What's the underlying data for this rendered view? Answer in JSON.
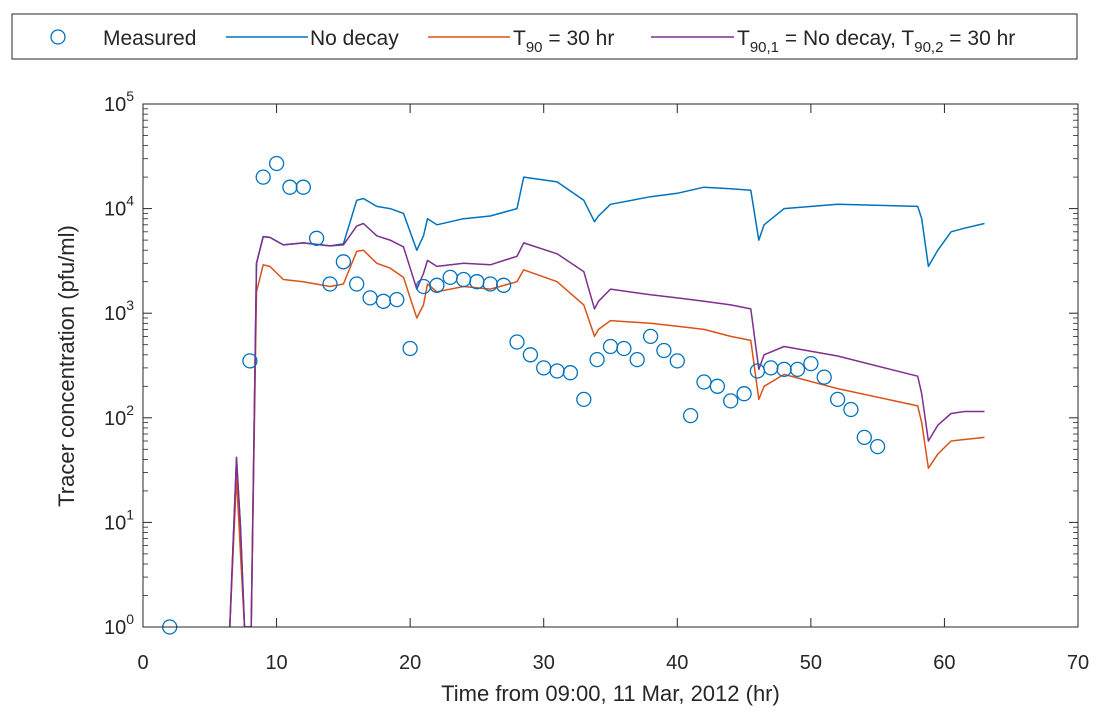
{
  "chart_data": {
    "type": "line",
    "xlabel": "Time from 09:00, 11 Mar, 2012 (hr)",
    "ylabel": "Tracer concentration (pfu/ml)",
    "xlim": [
      0,
      70
    ],
    "ylim": [
      1,
      100000
    ],
    "yscale": "log",
    "grid": false,
    "legend_position": "top",
    "x_ticks": [
      0,
      10,
      20,
      30,
      40,
      50,
      60,
      70
    ],
    "y_ticks": [
      {
        "value": 1,
        "base": "10",
        "exp": "0"
      },
      {
        "value": 10,
        "base": "10",
        "exp": "1"
      },
      {
        "value": 100,
        "base": "10",
        "exp": "2"
      },
      {
        "value": 1000,
        "base": "10",
        "exp": "3"
      },
      {
        "value": 10000,
        "base": "10",
        "exp": "4"
      },
      {
        "value": 100000,
        "base": "10",
        "exp": "5"
      }
    ],
    "legend": [
      {
        "key": "measured",
        "parts": [
          {
            "t": "Measured"
          }
        ]
      },
      {
        "key": "nodecay",
        "parts": [
          {
            "t": "No decay"
          }
        ]
      },
      {
        "key": "t90",
        "parts": [
          {
            "t": "T"
          },
          {
            "t": "90",
            "sub": true
          },
          {
            "t": " = 30 hr"
          }
        ]
      },
      {
        "key": "t90mix",
        "parts": [
          {
            "t": "T"
          },
          {
            "t": "90,1",
            "sub": true
          },
          {
            "t": " = No decay, T"
          },
          {
            "t": "90,2",
            "sub": true
          },
          {
            "t": " = 30 hr"
          }
        ]
      }
    ],
    "series": [
      {
        "name": "Measured",
        "kind": "scatter",
        "color": "#0072BD",
        "x": [
          2,
          8,
          9,
          10,
          11,
          12,
          13,
          14,
          15,
          16,
          17,
          18,
          19,
          20,
          21,
          22,
          23,
          24,
          25,
          26,
          27,
          28,
          29,
          30,
          31,
          32,
          33,
          34,
          35,
          36,
          37,
          38,
          39,
          40,
          41,
          42,
          43,
          44,
          45,
          46,
          47,
          48,
          49,
          50,
          51,
          52,
          53,
          54,
          55
        ],
        "y": [
          1,
          350,
          20000,
          27000,
          16000,
          16000,
          5200,
          1900,
          3100,
          1900,
          1400,
          1300,
          1350,
          460,
          1800,
          1850,
          2200,
          2100,
          2000,
          1900,
          1850,
          530,
          400,
          300,
          280,
          270,
          150,
          360,
          480,
          460,
          360,
          600,
          440,
          350,
          105,
          220,
          200,
          145,
          170,
          280,
          300,
          290,
          290,
          330,
          245,
          150,
          120,
          65,
          53
        ]
      },
      {
        "name": "No decay",
        "kind": "line",
        "color": "#0072BD",
        "x": [
          6.5,
          7.0,
          7.3,
          7.6,
          8.1,
          8.5,
          9.0,
          9.5,
          10.5,
          12,
          14,
          15,
          16,
          16.5,
          17.5,
          18.5,
          19.5,
          20.5,
          21,
          21.3,
          22,
          24,
          26,
          28,
          28.5,
          31,
          33,
          33.8,
          34.1,
          35,
          38,
          40,
          42,
          44,
          45.5,
          46.1,
          46.5,
          48,
          52,
          58,
          58.3,
          58.8,
          59.5,
          60.5,
          61.5,
          63
        ],
        "y": [
          1,
          40,
          9,
          1,
          1,
          3000,
          5400,
          5300,
          4500,
          4700,
          4400,
          4600,
          12000,
          12500,
          10500,
          10000,
          9000,
          4000,
          5500,
          8000,
          7000,
          8000,
          8500,
          10000,
          20000,
          18000,
          12000,
          7500,
          8500,
          11000,
          13000,
          14000,
          16000,
          15500,
          15000,
          5000,
          7000,
          10000,
          11000,
          10500,
          8000,
          2800,
          4000,
          6000,
          6500,
          7200
        ]
      },
      {
        "name": "T90 = 30 hr",
        "kind": "line",
        "color": "#D95319",
        "x": [
          6.5,
          7.0,
          7.3,
          7.6,
          8.1,
          8.5,
          9.0,
          9.5,
          10.5,
          12,
          14,
          15,
          16,
          16.5,
          17.5,
          18.5,
          19.5,
          20.5,
          21,
          21.3,
          22,
          24,
          26,
          28,
          28.5,
          31,
          33,
          33.8,
          34.1,
          35,
          38,
          40,
          42,
          44,
          45.5,
          46.1,
          46.5,
          48,
          52,
          58,
          58.3,
          58.8,
          59.5,
          60.5,
          61.5,
          63
        ],
        "y": [
          1,
          27,
          5,
          1,
          1,
          1600,
          2900,
          2800,
          2100,
          2000,
          1800,
          1900,
          3900,
          4000,
          3000,
          2700,
          2200,
          900,
          1200,
          1900,
          1600,
          1800,
          1700,
          2000,
          2600,
          2000,
          1200,
          600,
          700,
          850,
          800,
          750,
          700,
          600,
          550,
          150,
          200,
          260,
          190,
          130,
          90,
          33,
          45,
          60,
          62,
          65
        ]
      },
      {
        "name": "T90,1 = No decay, T90,2 = 30 hr",
        "kind": "line",
        "color": "#7E2F8E",
        "x": [
          6.5,
          7.0,
          7.3,
          7.6,
          8.1,
          8.5,
          9.0,
          9.5,
          10.5,
          12,
          14,
          15,
          16,
          16.5,
          17.5,
          18.5,
          19.5,
          20.5,
          21,
          21.3,
          22,
          24,
          26,
          28,
          28.5,
          31,
          33,
          33.8,
          34.1,
          35,
          38,
          40,
          42,
          44,
          45.5,
          46.1,
          46.5,
          48,
          52,
          58,
          58.3,
          58.8,
          59.5,
          60.5,
          61.5,
          63
        ],
        "y": [
          1,
          42,
          9,
          1,
          1,
          3000,
          5400,
          5300,
          4500,
          4700,
          4400,
          4500,
          6800,
          7200,
          5500,
          5000,
          4300,
          1700,
          2400,
          3200,
          2800,
          3000,
          2900,
          3500,
          4700,
          3700,
          2500,
          1100,
          1300,
          1700,
          1500,
          1400,
          1300,
          1200,
          1100,
          290,
          400,
          480,
          390,
          250,
          170,
          60,
          85,
          110,
          115,
          115
        ]
      }
    ]
  }
}
